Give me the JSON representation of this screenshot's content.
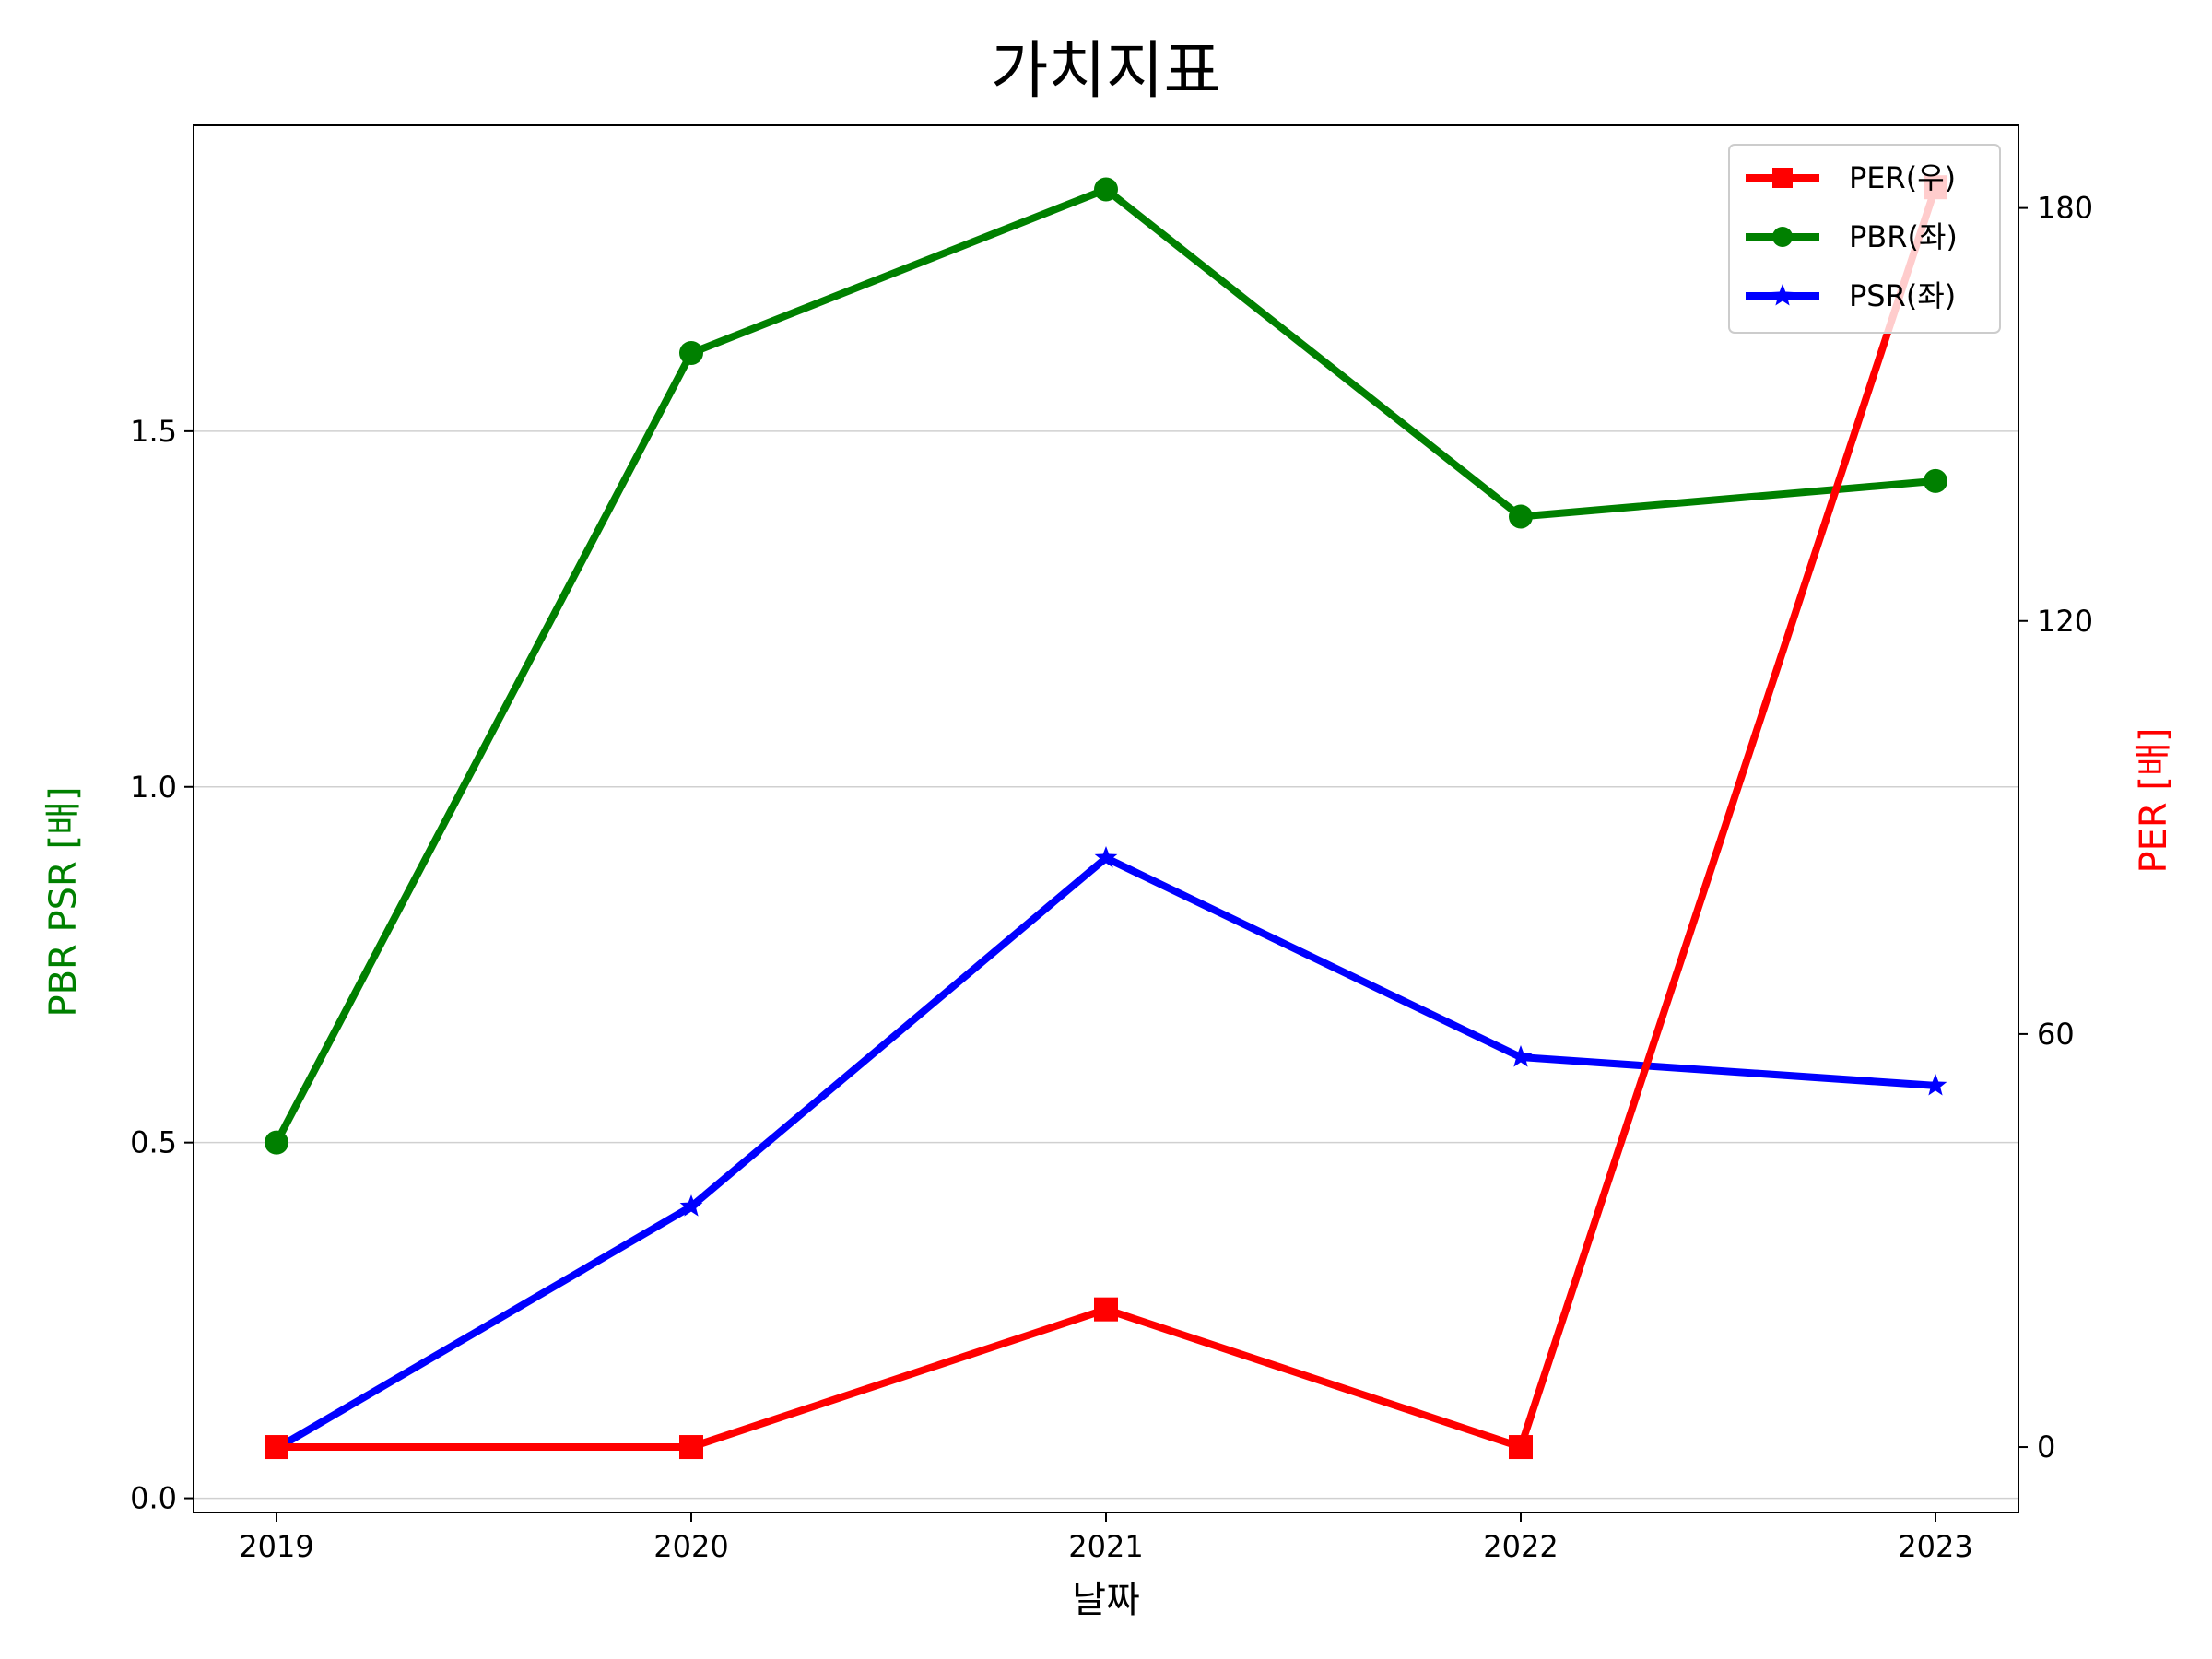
{
  "chart_data": {
    "type": "line",
    "title": "가치지표",
    "xlabel": "날짜",
    "ylabel_left": "PBR PSR [배]",
    "ylabel_right": "PER [배]",
    "categories": [
      "2019",
      "2020",
      "2021",
      "2022",
      "2023"
    ],
    "y_left": {
      "ylim": [
        -0.02,
        1.93
      ],
      "ticks": [
        0.0,
        0.5,
        1.0,
        1.5
      ],
      "tick_labels": [
        "0.0",
        "0.5",
        "1.0",
        "1.5"
      ]
    },
    "y_right": {
      "ylim": [
        -9.5,
        192
      ],
      "ticks": [
        0,
        60,
        120,
        180
      ],
      "tick_labels": [
        "0",
        "60",
        "120",
        "180"
      ]
    },
    "grid": "horizontal",
    "legend_position": "top-right",
    "series": [
      {
        "name": "PER(우)",
        "axis": "right",
        "color": "#ff0000",
        "marker": "square",
        "values": [
          0,
          0,
          20,
          0,
          183
        ]
      },
      {
        "name": "PBR(좌)",
        "axis": "left",
        "color": "#008000",
        "marker": "circle",
        "values": [
          0.5,
          1.61,
          1.84,
          1.38,
          1.43
        ]
      },
      {
        "name": "PSR(좌)",
        "axis": "left",
        "color": "#0000ff",
        "marker": "star",
        "values": [
          0.07,
          0.41,
          0.9,
          0.62,
          0.58
        ]
      }
    ]
  }
}
